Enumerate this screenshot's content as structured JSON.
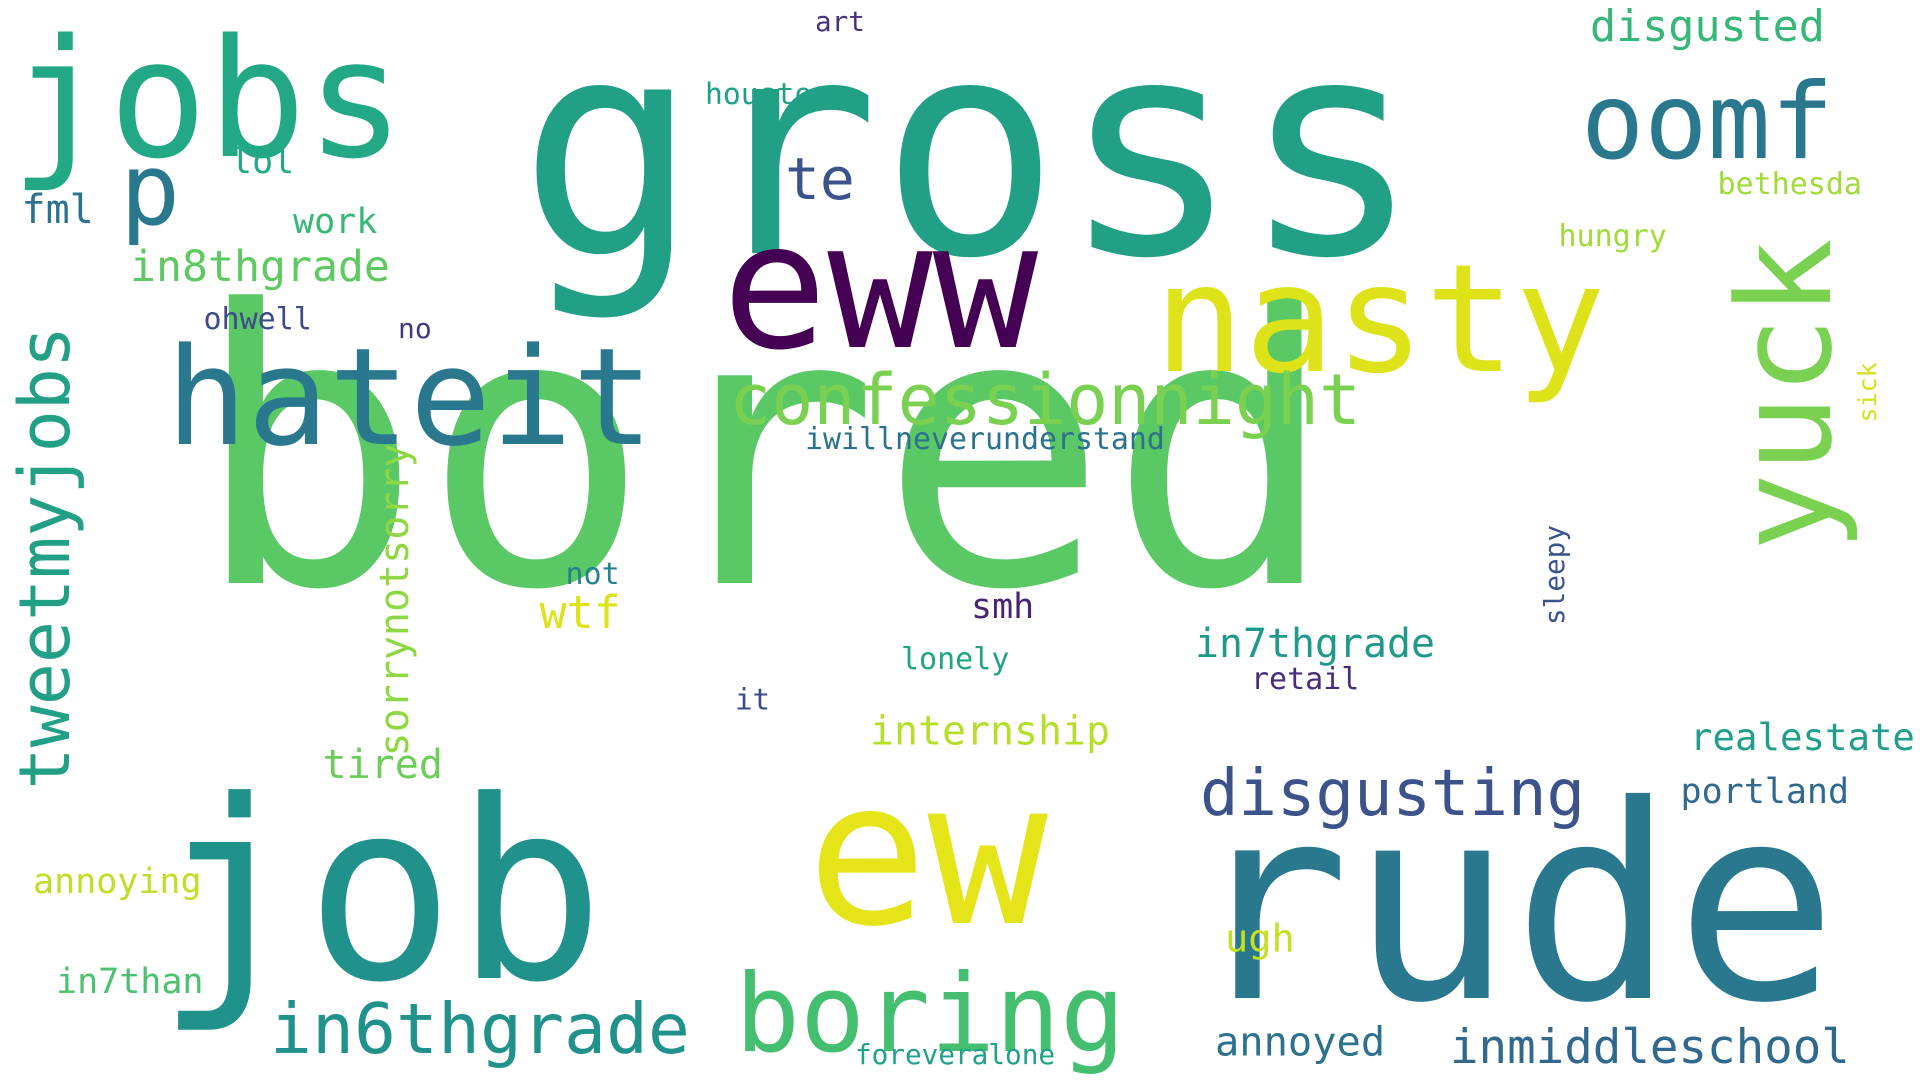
{
  "words": [
    {
      "text": "bored",
      "color": "#5ac864",
      "vertical": false
    },
    {
      "text": "gross",
      "color": "#21a085",
      "vertical": false
    },
    {
      "text": "eww",
      "color": "#440154",
      "vertical": false
    },
    {
      "text": "ew",
      "color": "#e5e419",
      "vertical": false
    },
    {
      "text": "rude",
      "color": "#2a788e",
      "vertical": false
    },
    {
      "text": "job",
      "color": "#21918c",
      "vertical": false
    },
    {
      "text": "jobs",
      "color": "#22a884",
      "vertical": false
    },
    {
      "text": "nasty",
      "color": "#dde318",
      "vertical": false
    },
    {
      "text": "hateit",
      "color": "#2a788e",
      "vertical": false
    },
    {
      "text": "oomf",
      "color": "#2a788e",
      "vertical": false
    },
    {
      "text": "yuck",
      "color": "#7ad151",
      "vertical": true
    },
    {
      "text": "p",
      "color": "#2a788e",
      "vertical": false
    },
    {
      "text": "boring",
      "color": "#44bf70",
      "vertical": false
    },
    {
      "text": "confessionnight",
      "color": "#7ad151",
      "vertical": false
    },
    {
      "text": "disgusting",
      "color": "#3b528b",
      "vertical": false
    },
    {
      "text": "in6thgrade",
      "color": "#21918c",
      "vertical": false
    },
    {
      "text": "tweetmyjobs",
      "color": "#21a085",
      "vertical": true
    },
    {
      "text": "te",
      "color": "#3b528b",
      "vertical": false
    },
    {
      "text": "inmiddleschool",
      "color": "#31688e",
      "vertical": false
    },
    {
      "text": "disgusted",
      "color": "#35b779",
      "vertical": false
    },
    {
      "text": "in8thgrade",
      "color": "#5ec962",
      "vertical": false
    },
    {
      "text": "in7thgrade",
      "color": "#1f9a8a",
      "vertical": false
    },
    {
      "text": "wtf",
      "color": "#dde318",
      "vertical": false
    },
    {
      "text": "sorrynotsorry",
      "color": "#8fd744",
      "vertical": true
    },
    {
      "text": "internship",
      "color": "#b5de2b",
      "vertical": false
    },
    {
      "text": "realestate",
      "color": "#1f9e89",
      "vertical": false
    },
    {
      "text": "annoyed",
      "color": "#2c728e",
      "vertical": false
    },
    {
      "text": "smh",
      "color": "#482475",
      "vertical": false
    },
    {
      "text": "fml",
      "color": "#2c728e",
      "vertical": false
    },
    {
      "text": "in7than",
      "color": "#4ac16d",
      "vertical": false
    },
    {
      "text": "tired",
      "color": "#6ccd5a",
      "vertical": false
    },
    {
      "text": "annoying",
      "color": "#bddf26",
      "vertical": false
    },
    {
      "text": "portland",
      "color": "#31688e",
      "vertical": false
    },
    {
      "text": "lol",
      "color": "#22a884",
      "vertical": false
    },
    {
      "text": "ugh",
      "color": "#c5e021",
      "vertical": false
    },
    {
      "text": "work",
      "color": "#35b779",
      "vertical": false
    },
    {
      "text": "ohwell",
      "color": "#3e4a89",
      "vertical": false
    },
    {
      "text": "iwillneverunderstand",
      "color": "#2c728e",
      "vertical": false
    },
    {
      "text": "not",
      "color": "#26828e",
      "vertical": false
    },
    {
      "text": "lonely",
      "color": "#20a486",
      "vertical": false
    },
    {
      "text": "bethesda",
      "color": "#a2da37",
      "vertical": false
    },
    {
      "text": "houston",
      "color": "#1fa187",
      "vertical": false
    },
    {
      "text": "sleepy",
      "color": "#3b528b",
      "vertical": true
    },
    {
      "text": "retail",
      "color": "#472d7b",
      "vertical": false
    },
    {
      "text": "hungry",
      "color": "#a0da39",
      "vertical": false
    },
    {
      "text": "it",
      "color": "#3e4989",
      "vertical": false
    },
    {
      "text": "no",
      "color": "#443a83",
      "vertical": false
    },
    {
      "text": "art",
      "color": "#46327e",
      "vertical": false
    },
    {
      "text": "sick",
      "color": "#d2e21b",
      "vertical": true
    },
    {
      "text": "foreveralone",
      "color": "#1fa088",
      "vertical": false
    }
  ]
}
